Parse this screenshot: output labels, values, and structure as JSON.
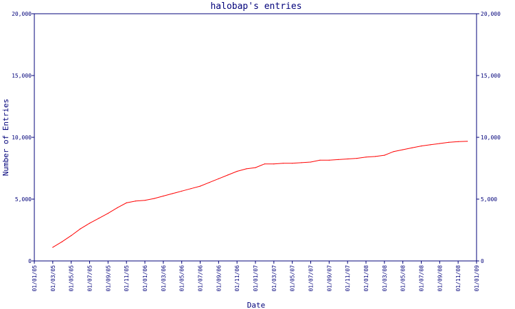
{
  "chart_data": {
    "type": "line",
    "title": "halobap's entries",
    "xlabel": "Date",
    "ylabel": "Number of Entries",
    "ylim": [
      0,
      20000
    ],
    "y_ticks": [
      0,
      5000,
      10000,
      15000,
      20000
    ],
    "y_tick_labels": [
      "0",
      "5,000",
      "10,000",
      "15,000",
      "20,000"
    ],
    "x_ticks": [
      "01/01/05",
      "01/03/05",
      "01/05/05",
      "01/07/05",
      "01/09/05",
      "01/11/05",
      "01/01/06",
      "01/03/06",
      "01/05/06",
      "01/07/06",
      "01/09/06",
      "01/11/06",
      "01/01/07",
      "01/03/07",
      "01/05/07",
      "01/07/07",
      "01/09/07",
      "01/11/07",
      "01/01/08",
      "01/03/08",
      "01/05/08",
      "01/07/08",
      "01/09/08",
      "01/11/08",
      "01/01/09"
    ],
    "colors": {
      "line": "#ff0000",
      "axis": "#00007a",
      "text": "#00007a"
    },
    "grid": false,
    "right_axis": true,
    "series": [
      {
        "x": [
          "01/03/05",
          "01/04/05",
          "01/05/05",
          "01/06/05",
          "01/07/05",
          "01/08/05",
          "01/09/05",
          "01/10/05",
          "01/11/05",
          "01/12/05",
          "01/01/06",
          "01/02/06",
          "01/03/06",
          "01/04/06",
          "01/05/06",
          "01/06/06",
          "01/07/06",
          "01/08/06",
          "01/09/06",
          "01/10/06",
          "01/11/06",
          "01/12/06",
          "01/01/07",
          "01/02/07",
          "01/03/07",
          "01/04/07",
          "01/05/07",
          "01/06/07",
          "01/07/07",
          "01/08/07",
          "01/09/07",
          "01/10/07",
          "01/11/07",
          "01/12/07",
          "01/01/08",
          "01/02/08",
          "01/03/08",
          "01/04/08",
          "01/05/08",
          "01/06/08",
          "01/07/08",
          "01/08/08",
          "01/09/08",
          "01/10/08",
          "01/11/08",
          "01/12/08"
        ],
        "values": [
          1100,
          1550,
          2050,
          2600,
          3050,
          3450,
          3850,
          4300,
          4700,
          4850,
          4900,
          5050,
          5250,
          5450,
          5650,
          5850,
          6050,
          6350,
          6650,
          6950,
          7250,
          7450,
          7550,
          7850,
          7850,
          7900,
          7900,
          7950,
          8000,
          8150,
          8150,
          8200,
          8250,
          8300,
          8400,
          8450,
          8550,
          8850,
          9000,
          9150,
          9300,
          9400,
          9500,
          9600,
          9650,
          9680
        ]
      }
    ]
  }
}
